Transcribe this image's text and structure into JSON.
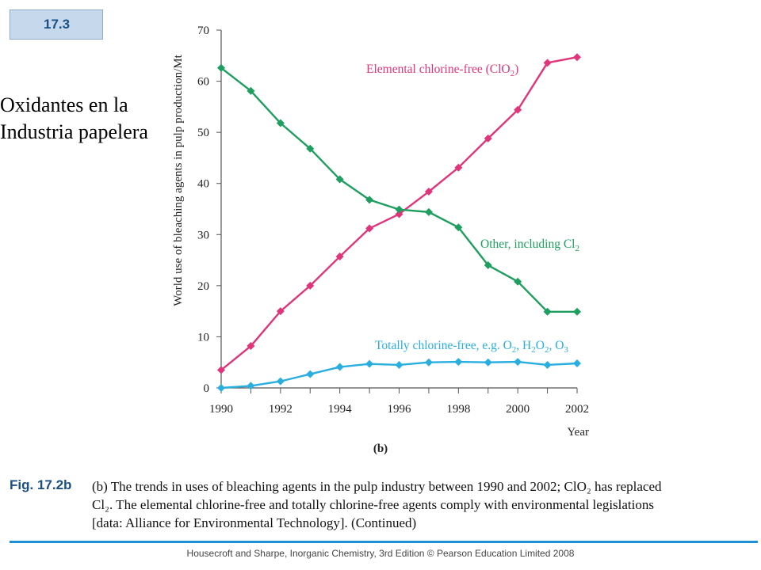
{
  "slide": {
    "badge": "17.3",
    "title_line1": "Oxidantes en la",
    "title_line2": "Industria papelera"
  },
  "colors": {
    "ecf": "#e0357a",
    "other": "#1e9e5f",
    "tcf": "#29aee0",
    "accent": "#1f8fd6",
    "axis": "#555555"
  },
  "chart_data": {
    "type": "line",
    "panel_label": "(b)",
    "xlabel": "Year",
    "ylabel": "World use of bleaching agents in pulp production/Mt",
    "xlim": [
      1990,
      2002
    ],
    "ylim": [
      0,
      70
    ],
    "xticks": [
      1990,
      1992,
      1994,
      1996,
      1998,
      2000,
      2002
    ],
    "yticks": [
      0,
      10,
      20,
      30,
      40,
      50,
      60,
      70
    ],
    "x": [
      1990,
      1991,
      1992,
      1993,
      1994,
      1995,
      1996,
      1997,
      1998,
      1999,
      2000,
      2001,
      2002
    ],
    "series": [
      {
        "name": "Elemental chlorine-free (ClO2)",
        "color_key": "ecf",
        "values": [
          3.5,
          8.2,
          15,
          20,
          25.7,
          31.2,
          34,
          38.4,
          43.1,
          48.8,
          54.4,
          63.6,
          64.7
        ]
      },
      {
        "name": "Other, including Cl2",
        "color_key": "other",
        "values": [
          62.6,
          58.1,
          51.8,
          46.8,
          40.8,
          36.8,
          34.9,
          34.4,
          31.4,
          24,
          20.8,
          14.9,
          14.9
        ]
      },
      {
        "name": "Totally chlorine-free, e.g. O2, H2O2, O3",
        "color_key": "tcf",
        "values": [
          0,
          0.4,
          1.3,
          2.7,
          4.1,
          4.7,
          4.5,
          5,
          5.1,
          5,
          5.1,
          4.5,
          4.8
        ]
      }
    ]
  },
  "caption": {
    "label": "Fig. 17.2b",
    "line1": "(b) The trends in uses of bleaching agents in the pulp industry between 1990 and 2002; ClO₂ has replaced",
    "line2": "Cl₂. The elemental chlorine-free and totally chlorine-free agents comply with environmental legislations",
    "line3": "[data: Alliance for Environmental Technology]. (Continued)"
  },
  "footer": {
    "text": "Housecroft and Sharpe, Inorganic Chemistry, 3rd Edition © Pearson Education Limited 2008"
  }
}
